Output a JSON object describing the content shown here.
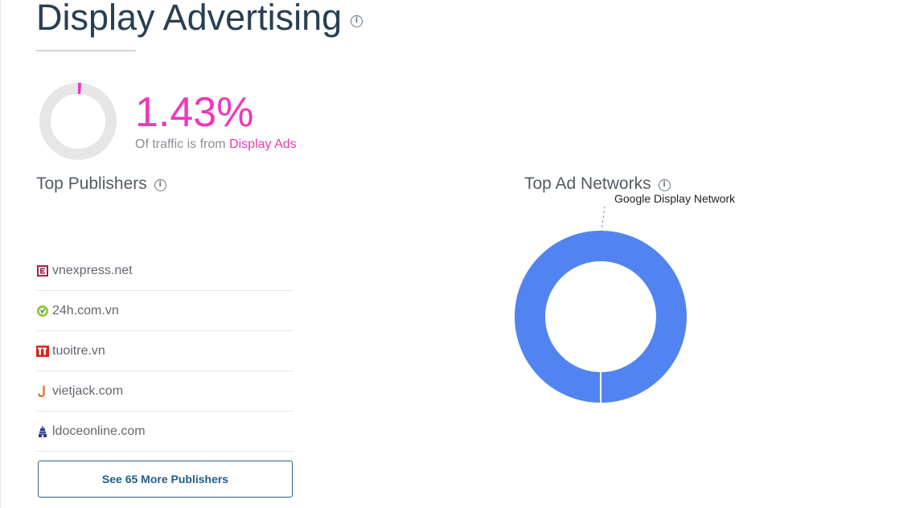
{
  "header": {
    "title": "Display Advertising",
    "info_glyph": "i"
  },
  "traffic": {
    "percent_text": "1.43%",
    "percent_value": 1.43,
    "caption_prefix": "Of traffic is from",
    "caption_highlight": "Display Ads",
    "accent_color": "#ee38b9",
    "track_color": "#e6e6e6"
  },
  "top_publishers": {
    "title": "Top Publishers",
    "items": [
      {
        "name": "vnexpress.net",
        "icon": "vnexpress-favicon-icon"
      },
      {
        "name": "24h.com.vn",
        "icon": "24h-favicon-icon"
      },
      {
        "name": "tuoitre.vn",
        "icon": "tuoitre-favicon-icon"
      },
      {
        "name": "vietjack.com",
        "icon": "vietjack-favicon-icon"
      },
      {
        "name": "ldoceonline.com",
        "icon": "ldoceonline-favicon-icon"
      }
    ],
    "more_button": "See 65 More Publishers"
  },
  "top_ad_networks": {
    "title": "Top Ad Networks",
    "chart_data": {
      "type": "pie",
      "categories": [
        "Google Display Network"
      ],
      "values": [
        100
      ],
      "colors": [
        "#5184f0"
      ]
    }
  }
}
